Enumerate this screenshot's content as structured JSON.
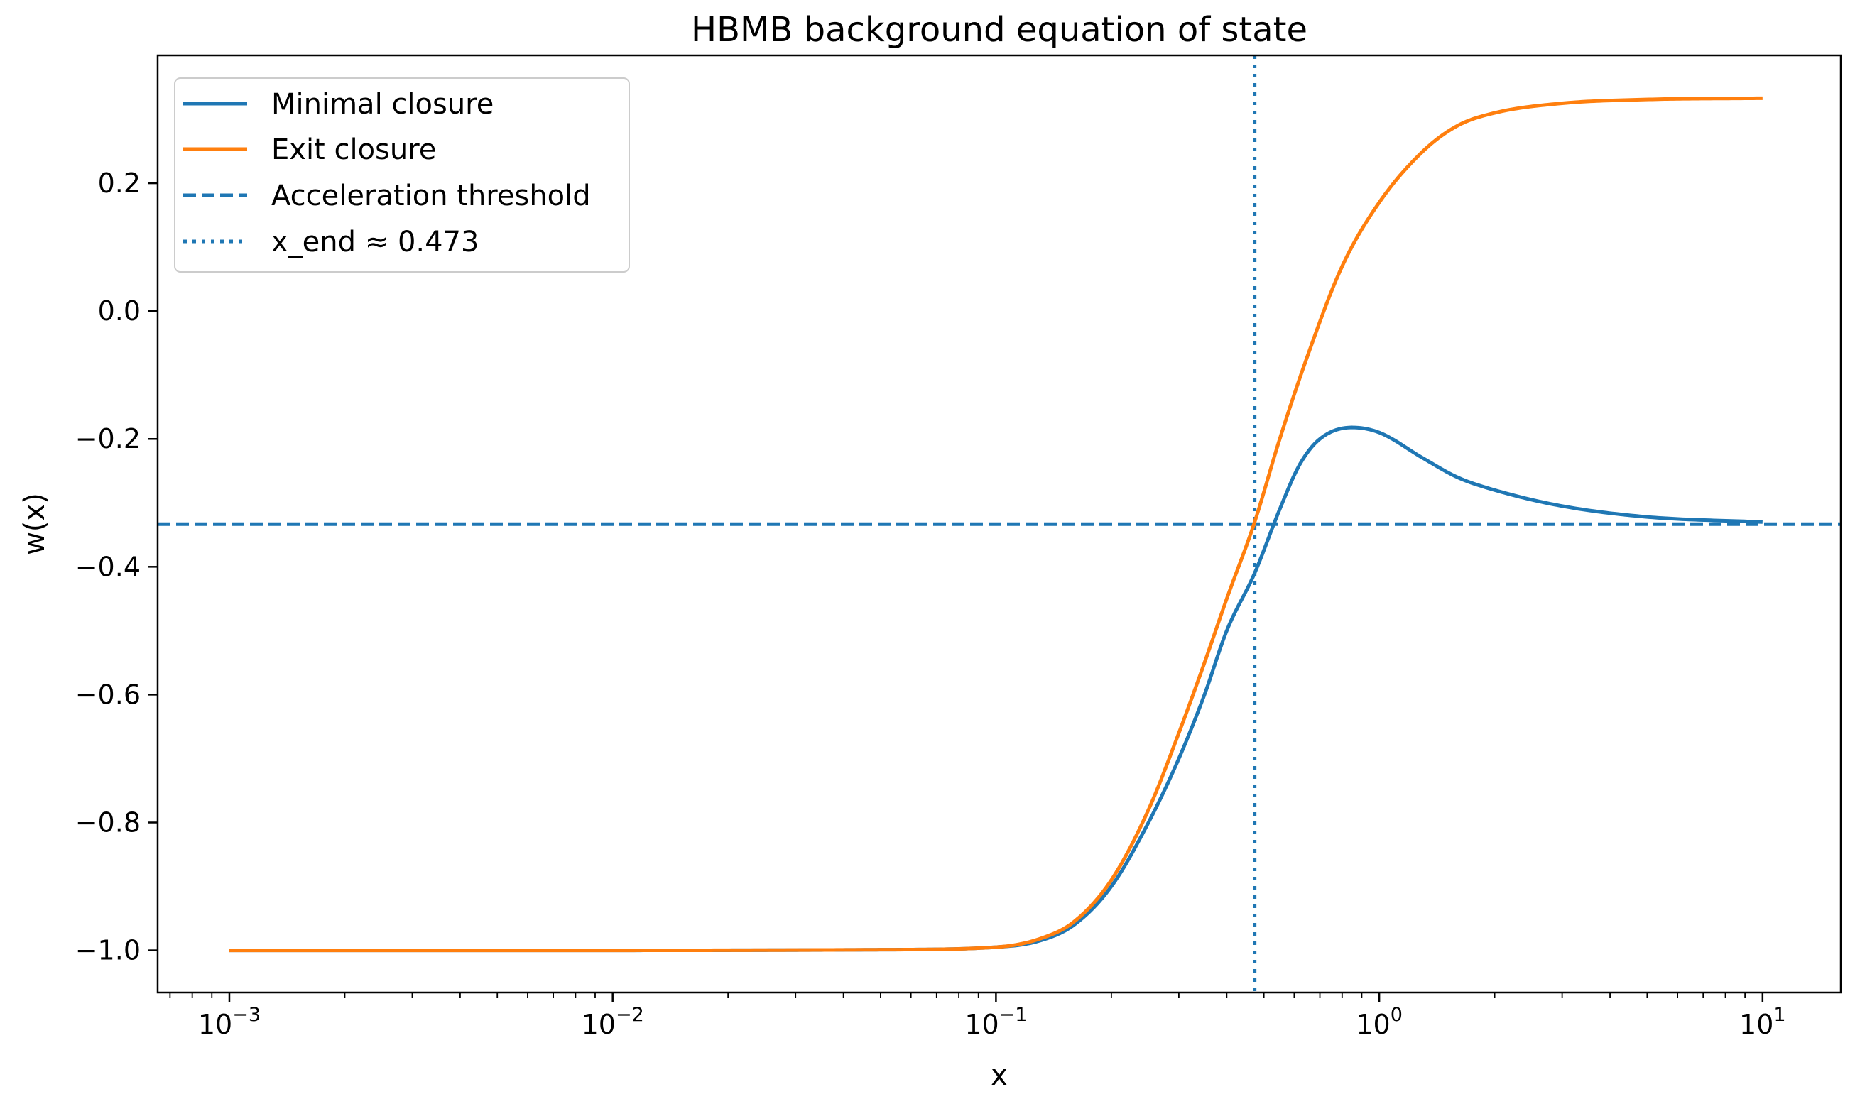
{
  "chart_data": {
    "type": "line",
    "title": "HBMB background equation of state",
    "xlabel": "x",
    "ylabel": "w(x)",
    "xscale": "log",
    "xlim": [
      0.00065,
      16
    ],
    "ylim": [
      -1.066,
      0.4
    ],
    "x_ticks": [
      {
        "value": 0.001,
        "base": "10",
        "exp": "−3"
      },
      {
        "value": 0.01,
        "base": "10",
        "exp": "−2"
      },
      {
        "value": 0.1,
        "base": "10",
        "exp": "−1"
      },
      {
        "value": 1,
        "base": "10",
        "exp": "0"
      },
      {
        "value": 10,
        "base": "10",
        "exp": "1"
      }
    ],
    "y_ticks": [
      {
        "value": 0.2,
        "label": "0.2"
      },
      {
        "value": 0.0,
        "label": "0.0"
      },
      {
        "value": -0.2,
        "label": "−0.2"
      },
      {
        "value": -0.4,
        "label": "−0.4"
      },
      {
        "value": -0.6,
        "label": "−0.6"
      },
      {
        "value": -0.8,
        "label": "−0.8"
      },
      {
        "value": -1.0,
        "label": "−1.0"
      }
    ],
    "grid": false,
    "legend_position": "top-left",
    "series": [
      {
        "name": "Minimal closure",
        "color": "#1f77b4",
        "style": "solid",
        "points": [
          [
            0.001,
            -1.0
          ],
          [
            0.01,
            -1.0
          ],
          [
            0.05,
            -0.999
          ],
          [
            0.1,
            -0.995
          ],
          [
            0.13,
            -0.985
          ],
          [
            0.16,
            -0.96
          ],
          [
            0.2,
            -0.9
          ],
          [
            0.25,
            -0.8
          ],
          [
            0.3,
            -0.7
          ],
          [
            0.35,
            -0.6
          ],
          [
            0.4,
            -0.5
          ],
          [
            0.473,
            -0.41
          ],
          [
            0.55,
            -0.31
          ],
          [
            0.62,
            -0.24
          ],
          [
            0.7,
            -0.2
          ],
          [
            0.85,
            -0.182
          ],
          [
            1.0,
            -0.19
          ],
          [
            1.3,
            -0.23
          ],
          [
            1.6,
            -0.26
          ],
          [
            2.0,
            -0.28
          ],
          [
            3.0,
            -0.305
          ],
          [
            5.0,
            -0.322
          ],
          [
            10.0,
            -0.33
          ]
        ]
      },
      {
        "name": "Exit closure",
        "color": "#ff7f0e",
        "style": "solid",
        "points": [
          [
            0.001,
            -1.0
          ],
          [
            0.01,
            -1.0
          ],
          [
            0.05,
            -0.999
          ],
          [
            0.1,
            -0.995
          ],
          [
            0.13,
            -0.982
          ],
          [
            0.16,
            -0.955
          ],
          [
            0.2,
            -0.89
          ],
          [
            0.25,
            -0.78
          ],
          [
            0.3,
            -0.66
          ],
          [
            0.35,
            -0.55
          ],
          [
            0.4,
            -0.45
          ],
          [
            0.473,
            -0.33
          ],
          [
            0.55,
            -0.2
          ],
          [
            0.65,
            -0.07
          ],
          [
            0.8,
            0.07
          ],
          [
            1.0,
            0.17
          ],
          [
            1.3,
            0.25
          ],
          [
            1.6,
            0.29
          ],
          [
            2.0,
            0.31
          ],
          [
            3.0,
            0.325
          ],
          [
            5.0,
            0.331
          ],
          [
            10.0,
            0.333
          ]
        ]
      }
    ],
    "reference_lines": [
      {
        "name": "Acceleration threshold",
        "orientation": "horizontal",
        "value": -0.3333,
        "color": "#1f77b4",
        "style": "dashed"
      },
      {
        "name": "x_end ≈ 0.473",
        "orientation": "vertical",
        "value": 0.473,
        "color": "#1f77b4",
        "style": "dotted"
      }
    ]
  }
}
